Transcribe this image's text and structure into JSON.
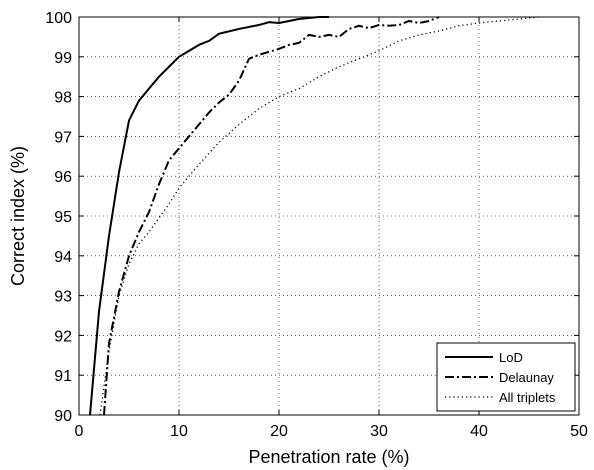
{
  "chart_data": {
    "type": "line",
    "title": "",
    "xlabel": "Penetration rate (%)",
    "ylabel": "Correct index (%)",
    "xlim": [
      0,
      50
    ],
    "ylim": [
      90,
      100
    ],
    "xticks": [
      "0",
      "10",
      "20",
      "30",
      "40",
      "50"
    ],
    "yticks": [
      "90",
      "91",
      "92",
      "93",
      "94",
      "95",
      "96",
      "97",
      "98",
      "99",
      "100"
    ],
    "grid": true,
    "legend_position": "bottom-right",
    "series": [
      {
        "name": "LoD",
        "style": "solid",
        "x": [
          1.1,
          2,
          3,
          4,
          5,
          6,
          7,
          8,
          9,
          10,
          11,
          12,
          13,
          14,
          16,
          18,
          19,
          20,
          22,
          24,
          25
        ],
        "y": [
          90.0,
          92.6,
          94.5,
          96.1,
          97.4,
          97.9,
          98.2,
          98.5,
          98.75,
          99.0,
          99.15,
          99.3,
          99.4,
          99.58,
          99.7,
          99.8,
          99.87,
          99.85,
          99.95,
          100,
          100
        ]
      },
      {
        "name": "Delaunay",
        "style": "dashdot",
        "x": [
          2.5,
          3,
          4,
          5,
          6,
          7,
          8,
          9,
          10,
          11,
          12,
          13,
          14,
          15,
          16,
          17,
          18,
          20,
          21,
          22,
          23,
          24,
          25,
          26,
          27,
          28,
          29,
          30,
          31,
          32,
          33,
          34,
          35,
          36
        ],
        "y": [
          90.0,
          91.8,
          93.1,
          94.0,
          94.6,
          95.1,
          95.8,
          96.4,
          96.7,
          97.0,
          97.3,
          97.6,
          97.85,
          98.05,
          98.4,
          98.95,
          99.05,
          99.2,
          99.3,
          99.35,
          99.55,
          99.5,
          99.55,
          99.5,
          99.7,
          99.78,
          99.72,
          99.8,
          99.78,
          99.8,
          99.9,
          99.85,
          99.9,
          100
        ]
      },
      {
        "name": "All triplets",
        "style": "dotted",
        "x": [
          2.1,
          3,
          4,
          5,
          6,
          7,
          8,
          9,
          10,
          12,
          14,
          16,
          18,
          20,
          22,
          24,
          26,
          28,
          30,
          32,
          34,
          36,
          38,
          40,
          42,
          44,
          46
        ],
        "y": [
          90.0,
          91.6,
          93.0,
          93.8,
          94.3,
          94.6,
          94.95,
          95.3,
          95.7,
          96.3,
          96.85,
          97.3,
          97.7,
          98.0,
          98.2,
          98.5,
          98.75,
          98.95,
          99.15,
          99.4,
          99.55,
          99.65,
          99.78,
          99.85,
          99.9,
          99.95,
          100
        ]
      }
    ]
  }
}
